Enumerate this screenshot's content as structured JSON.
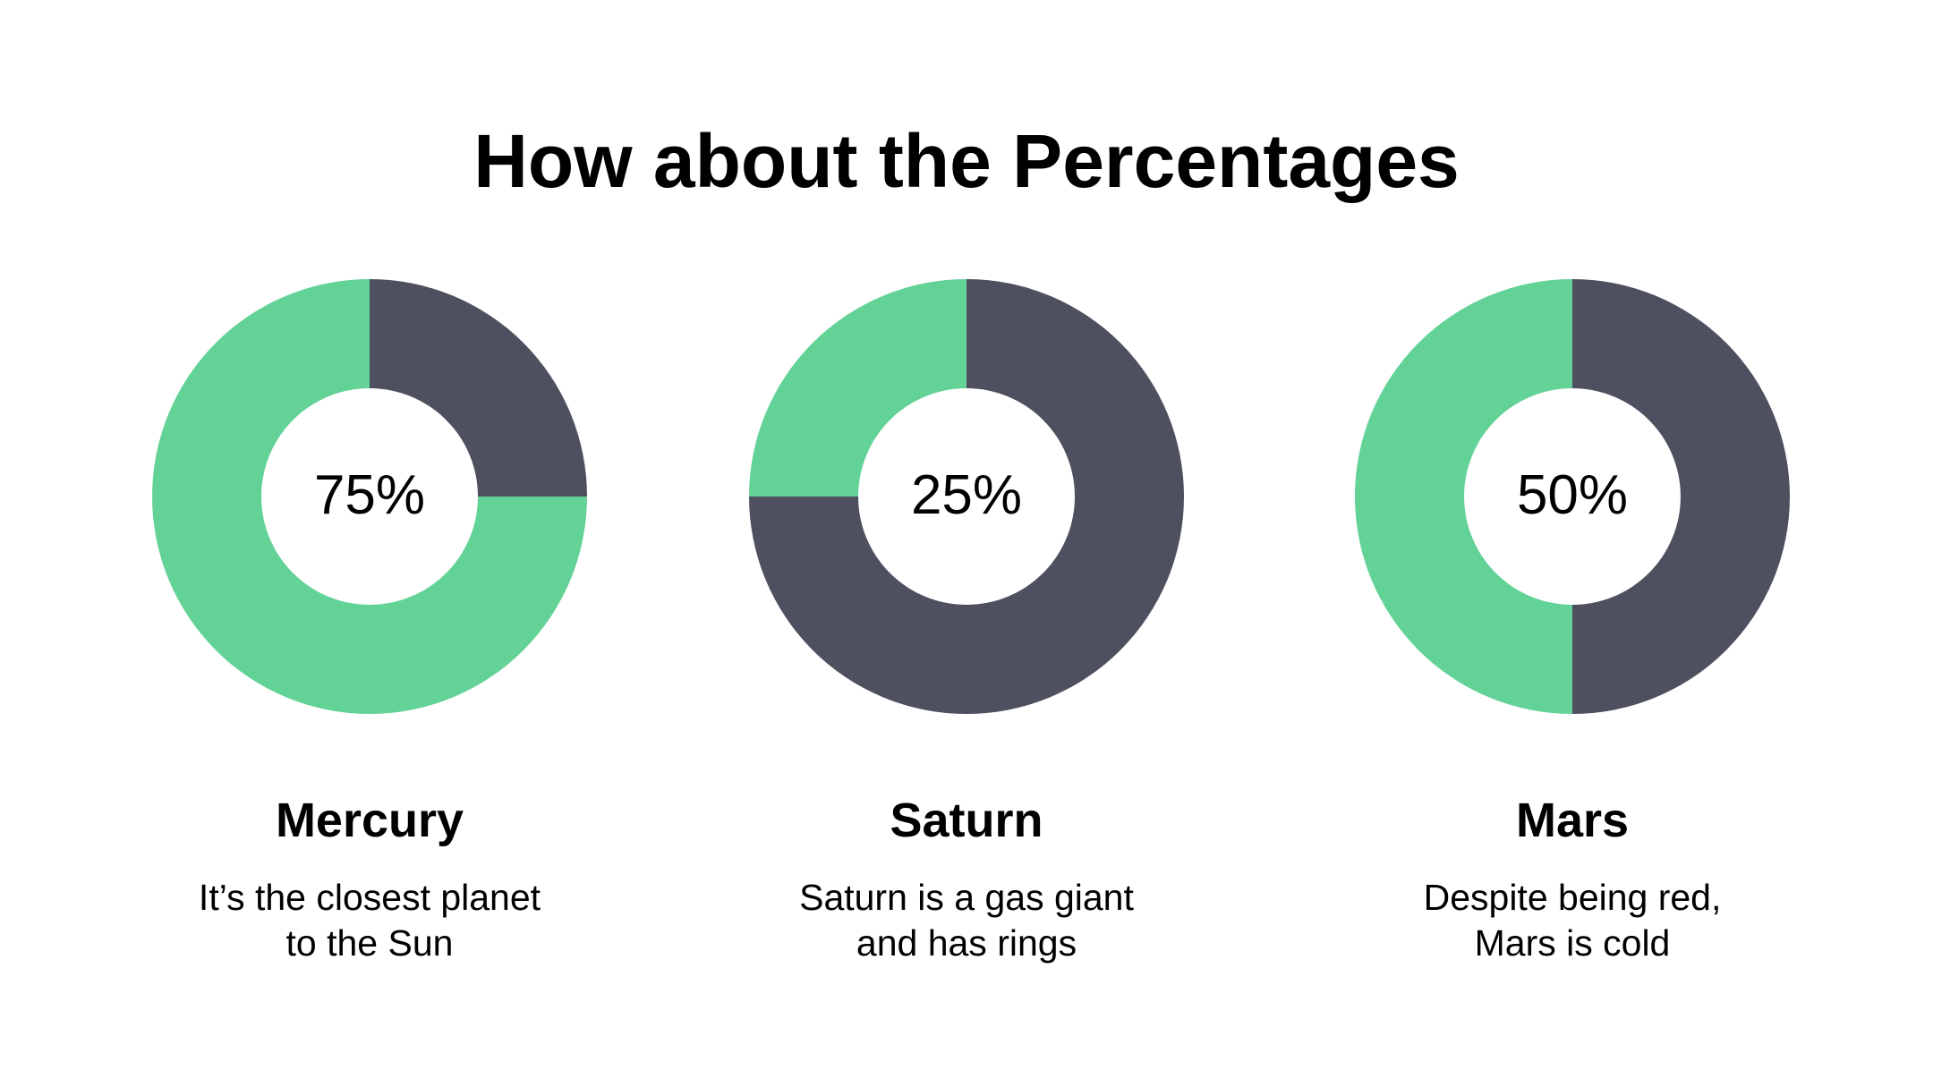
{
  "title": "How about the Percentages",
  "colors": {
    "accent": "#63d297",
    "remainder": "#4e5060",
    "background": "#ffffff",
    "text": "#000000"
  },
  "chart_data": [
    {
      "type": "pie",
      "variant": "donut",
      "value_label": "75%",
      "values": [
        75,
        25
      ],
      "name": "Mercury",
      "description": [
        "It’s the closest planet",
        "to the Sun"
      ]
    },
    {
      "type": "pie",
      "variant": "donut",
      "value_label": "25%",
      "values": [
        25,
        75
      ],
      "name": "Saturn",
      "description": [
        "Saturn is a gas giant",
        "and has rings"
      ]
    },
    {
      "type": "pie",
      "variant": "donut",
      "value_label": "50%",
      "values": [
        50,
        50
      ],
      "name": "Mars",
      "description": [
        "Despite being red,",
        "Mars is cold"
      ]
    }
  ]
}
